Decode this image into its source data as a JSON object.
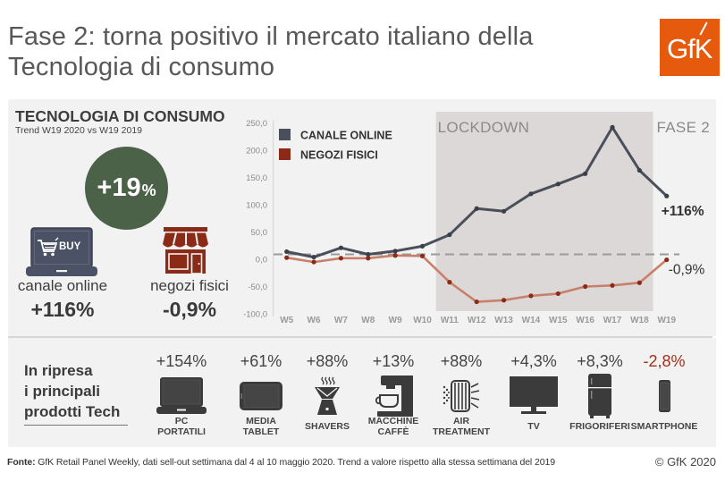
{
  "title": {
    "line1": "Fase 2: torna positivo il mercato italiano della",
    "line2": "Tecnologia di consumo"
  },
  "logo": {
    "text": "GfK",
    "icon": "gfk-logo-icon"
  },
  "summary": {
    "heading": "TECNOLOGIA DI CONSUMO",
    "subheading": "Trend W19 2020 vs W19 2019",
    "total": {
      "value": "+19",
      "unit": "%"
    },
    "online": {
      "icon": "laptop-shopping-cart-icon",
      "icon_text": "BUY",
      "label": "canale online",
      "value": "+116%"
    },
    "stores": {
      "icon": "storefront-icon",
      "label": "negozi fisici",
      "value": "-0,9%"
    }
  },
  "chart_data": {
    "type": "line",
    "title": "",
    "xlabel": "",
    "ylabel": "",
    "categories": [
      "W5",
      "W6",
      "W7",
      "W8",
      "W9",
      "W10",
      "W11",
      "W12",
      "W13",
      "W14",
      "W15",
      "W16",
      "W17",
      "W18",
      "W19"
    ],
    "series": [
      {
        "name": "CANALE ONLINE",
        "line_color": "#4a4f5a",
        "marker_color": "#3a3f48",
        "values": [
          14,
          4,
          21,
          9,
          15,
          24,
          45,
          93,
          88,
          120,
          138,
          157,
          242,
          163,
          116
        ]
      },
      {
        "name": "NEGOZI FISICI",
        "line_color": "#c9806b",
        "marker_color": "#8b2a17",
        "legend_color": "#8b2a17",
        "values": [
          3,
          -5,
          2,
          2,
          7,
          6,
          -42,
          -78,
          -75,
          -67,
          -63,
          -50,
          -48,
          -43,
          -0.9
        ]
      }
    ],
    "ylim": [
      -100,
      250
    ],
    "ytick_values": [
      250,
      200,
      150,
      100,
      50,
      0,
      -50,
      -100
    ],
    "ytick_labels": [
      "250,0",
      "200,0",
      "150,0",
      "100,0",
      "50,0",
      "0,0",
      "-50,0",
      "-100,0"
    ],
    "reference_line": {
      "value": 9,
      "style": "dashed"
    },
    "regions": [
      {
        "label": "LOCKDOWN",
        "from": "W11",
        "to": "W18",
        "shaded": true
      },
      {
        "label": "FASE 2",
        "from": "W19",
        "to": "W19",
        "shaded": false
      }
    ],
    "annotations": [
      {
        "series": "CANALE ONLINE",
        "at": "W19",
        "text": "+116%"
      },
      {
        "series": "NEGOZI FISICI",
        "at": "W19",
        "text": "-0,9%"
      }
    ],
    "legend_position": "top-left",
    "grid": false
  },
  "products": {
    "heading_lines": [
      "In ripresa",
      "i principali",
      "prodotti Tech"
    ],
    "items": [
      {
        "value": "+154%",
        "label_lines": [
          "PC",
          "PORTATILI"
        ],
        "icon": "laptop-icon"
      },
      {
        "value": "+61%",
        "label_lines": [
          "MEDIA",
          "TABLET"
        ],
        "icon": "tablet-icon"
      },
      {
        "value": "+88%",
        "label_lines": [
          "SHAVERS"
        ],
        "icon": "shaver-icon"
      },
      {
        "value": "+13%",
        "label_lines": [
          "MACCHINE",
          "CAFFÈ"
        ],
        "icon": "coffee-machine-icon"
      },
      {
        "value": "+88%",
        "label_lines": [
          "AIR",
          "TREATMENT"
        ],
        "icon": "air-purifier-icon"
      },
      {
        "value": "+4,3%",
        "label_lines": [
          "TV"
        ],
        "icon": "tv-icon"
      },
      {
        "value": "+8,3%",
        "label_lines": [
          "FRIGORIFERI"
        ],
        "icon": "fridge-icon"
      },
      {
        "value": "-2,8%",
        "label_lines": [
          "SMARTPHONE"
        ],
        "icon": "smartphone-icon"
      }
    ]
  },
  "footer": {
    "source_label": "Fonte:",
    "source_text": " GfK Retail Panel Weekly, dati sell-out settimana dal 4 al 10 maggio 2020. Trend a valore rispetto alla stessa settimana del 2019",
    "copyright": "© GfK 2020"
  },
  "colors": {
    "brand_orange": "#e55a0c",
    "total_circle": "#4b6148",
    "online": "#4a4f5a",
    "stores": "#8b2a17",
    "negative_value": "#a3301a",
    "lockdown_shade": "#dcd8d8",
    "panel_bg": "#f2f2f2"
  }
}
